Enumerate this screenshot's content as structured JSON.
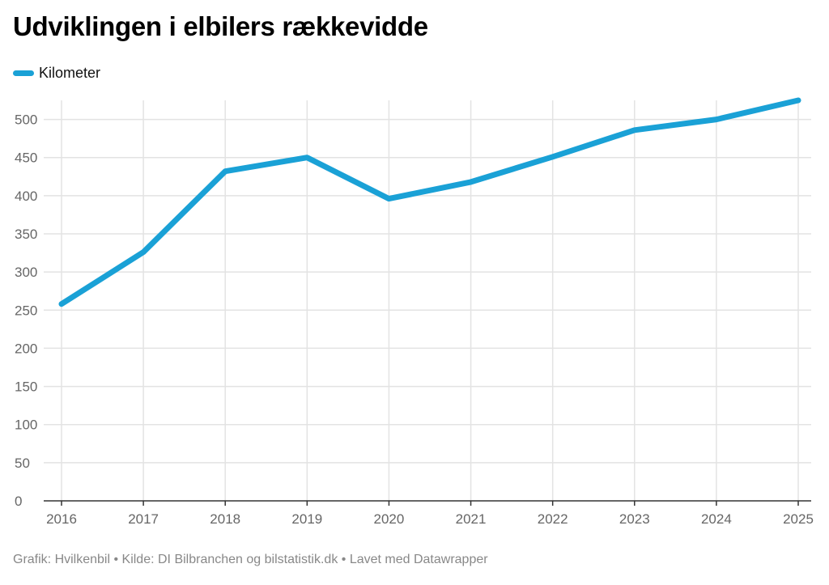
{
  "title": "Udviklingen i elbilers rækkevidde",
  "footer": "Grafik: Hvilkenbil • Kilde: DI Bilbranchen og bilstatistik.dk • Lavet med Datawrapper",
  "colors": {
    "line": "#1aa1d6",
    "grid": "#e3e3e3",
    "axis": "#333333",
    "tick_text": "#666666"
  },
  "chart_data": {
    "type": "line",
    "x": [
      "2016",
      "2017",
      "2018",
      "2019",
      "2020",
      "2021",
      "2022",
      "2023",
      "2024",
      "2025"
    ],
    "series": [
      {
        "name": "Kilometer",
        "values": [
          258,
          326,
          432,
          450,
          396,
          418,
          451,
          486,
          500,
          525
        ]
      }
    ],
    "y_ticks": [
      0,
      50,
      100,
      150,
      200,
      250,
      300,
      350,
      400,
      450,
      500
    ],
    "ylim": [
      0,
      525
    ],
    "grid": true,
    "legend_position": "top-left"
  }
}
